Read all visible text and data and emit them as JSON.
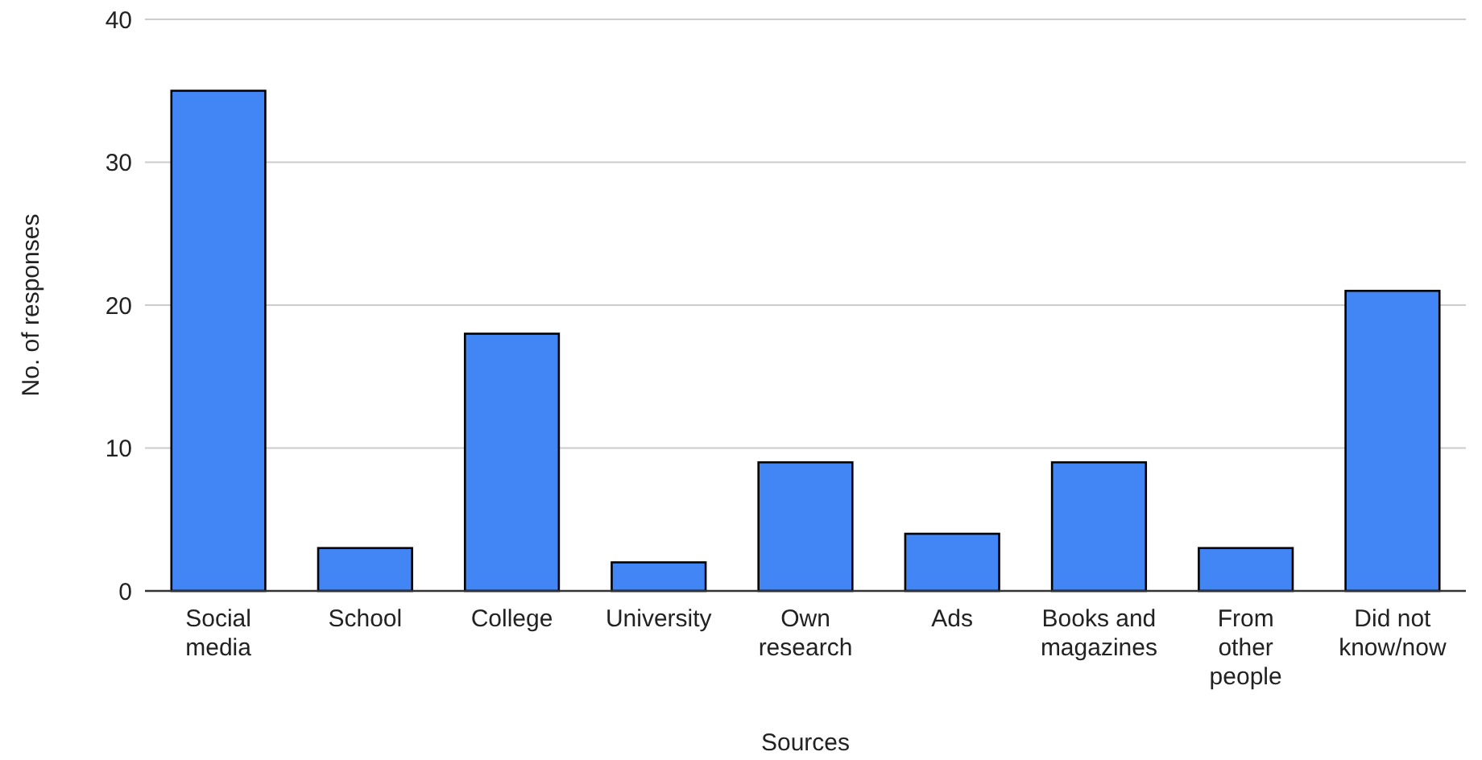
{
  "chart_data": {
    "type": "bar",
    "xlabel": "Sources",
    "ylabel": "No. of responses",
    "categories": [
      "Social media",
      "School",
      "College",
      "University",
      "Own research",
      "Ads",
      "Books and magazines",
      "From other people",
      "Did not know/now"
    ],
    "values": [
      35,
      3,
      18,
      2,
      9,
      4,
      9,
      3,
      21
    ],
    "color": "#4285f4",
    "ylim": [
      0,
      40
    ],
    "yticks": [
      0,
      10,
      20,
      30,
      40
    ],
    "grid": "y"
  }
}
